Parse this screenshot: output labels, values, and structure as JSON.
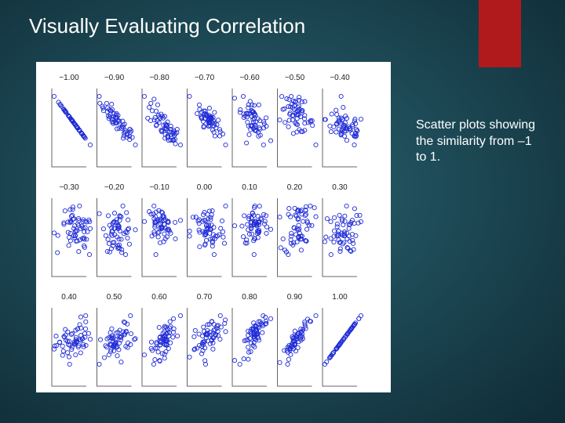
{
  "slide": {
    "title": "Visually Evaluating Correlation",
    "caption": "Scatter plots showing the similarity from –1 to 1.",
    "accent_color": "#b11a1c"
  },
  "chart_data": {
    "type": "scatter",
    "layout": "small-multiples",
    "rows": 3,
    "cols": 7,
    "marker_color": "#1f2bd6",
    "correlation_labels": [
      "−1.00",
      "−0.90",
      "−0.80",
      "−0.70",
      "−0.60",
      "−0.50",
      "−0.40",
      "−0.30",
      "−0.20",
      "−0.10",
      "0.00",
      "0.10",
      "0.20",
      "0.30",
      "0.40",
      "0.50",
      "0.60",
      "0.70",
      "0.80",
      "0.90",
      "1.00"
    ],
    "correlations": [
      -1.0,
      -0.9,
      -0.8,
      -0.7,
      -0.6,
      -0.5,
      -0.4,
      -0.3,
      -0.2,
      -0.1,
      0.0,
      0.1,
      0.2,
      0.3,
      0.4,
      0.5,
      0.6,
      0.7,
      0.8,
      0.9,
      1.0
    ],
    "points_per_plot": 60
  }
}
